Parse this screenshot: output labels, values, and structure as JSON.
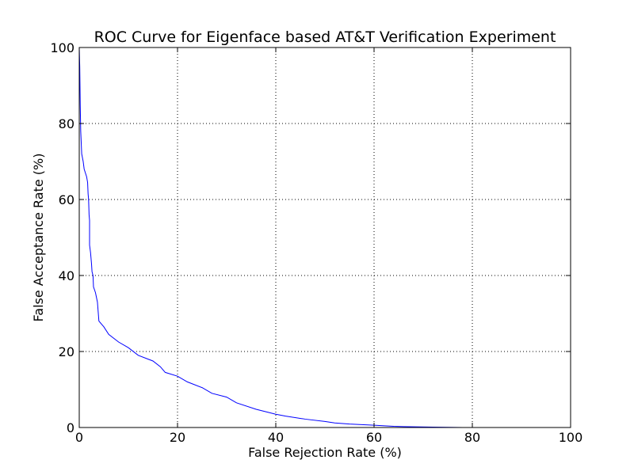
{
  "chart_data": {
    "type": "line",
    "title": "ROC Curve for Eigenface based AT&T Verification Experiment",
    "xlabel": "False Rejection Rate (%)",
    "ylabel": "False Acceptance Rate (%)",
    "xlim": [
      0,
      100
    ],
    "ylim": [
      0,
      100
    ],
    "xticks": [
      0,
      20,
      40,
      60,
      80,
      100
    ],
    "yticks": [
      0,
      20,
      40,
      60,
      80,
      100
    ],
    "grid": true,
    "series": [
      {
        "color": "#0000ff",
        "points": [
          [
            0.0,
            100.0
          ],
          [
            0.1,
            95.0
          ],
          [
            0.2,
            85.0
          ],
          [
            0.3,
            78.0
          ],
          [
            0.4,
            75.0
          ],
          [
            0.5,
            72.0
          ],
          [
            0.8,
            70.0
          ],
          [
            1.0,
            68.0
          ],
          [
            1.5,
            66.0
          ],
          [
            1.7,
            64.5
          ],
          [
            1.8,
            61.5
          ],
          [
            1.9,
            60.0
          ],
          [
            2.0,
            56.0
          ],
          [
            2.1,
            54.5
          ],
          [
            2.1,
            48.0
          ],
          [
            2.3,
            46.0
          ],
          [
            2.5,
            43.0
          ],
          [
            2.6,
            41.0
          ],
          [
            2.8,
            40.0
          ],
          [
            2.9,
            37.0
          ],
          [
            3.3,
            35.5
          ],
          [
            3.7,
            33.0
          ],
          [
            4.0,
            28.0
          ],
          [
            5.0,
            26.5
          ],
          [
            6.0,
            24.5
          ],
          [
            8.0,
            22.5
          ],
          [
            10.0,
            21.0
          ],
          [
            12.0,
            19.0
          ],
          [
            14.0,
            18.0
          ],
          [
            15.0,
            17.5
          ],
          [
            16.5,
            16.0
          ],
          [
            17.5,
            14.5
          ],
          [
            20.0,
            13.5
          ],
          [
            22.0,
            12.0
          ],
          [
            25.0,
            10.5
          ],
          [
            27.0,
            9.0
          ],
          [
            30.0,
            8.0
          ],
          [
            32.0,
            6.5
          ],
          [
            36.0,
            4.8
          ],
          [
            40.0,
            3.5
          ],
          [
            42.0,
            3.0
          ],
          [
            46.0,
            2.2
          ],
          [
            50.0,
            1.6
          ],
          [
            52.0,
            1.2
          ],
          [
            55.0,
            0.9
          ],
          [
            60.0,
            0.6
          ],
          [
            64.0,
            0.3
          ],
          [
            67.0,
            0.2
          ],
          [
            72.0,
            0.1
          ],
          [
            78.0,
            0.0
          ]
        ]
      }
    ]
  }
}
